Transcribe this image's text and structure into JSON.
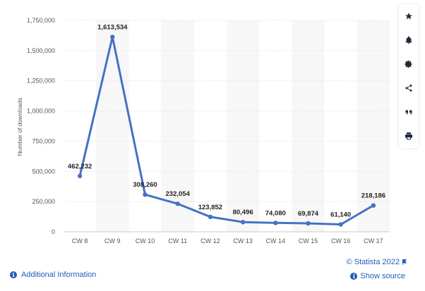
{
  "chart_data": {
    "type": "line",
    "categories": [
      "CW 8",
      "CW 9",
      "CW 10",
      "CW 11",
      "CW 12",
      "CW 13",
      "CW 14",
      "CW 15",
      "CW 16",
      "CW 17"
    ],
    "values": [
      462232,
      1613534,
      308260,
      232054,
      123852,
      80496,
      74080,
      69874,
      61140,
      218186
    ],
    "data_labels": [
      "462,232",
      "1,613,534",
      "308,260",
      "232,054",
      "123,852",
      "80,496",
      "74,080",
      "69,874",
      "61,140",
      "218,186"
    ],
    "yticks": [
      "0",
      "250,000",
      "500,000",
      "750,000",
      "1,000,000",
      "1,250,000",
      "1,500,000",
      "1,750,000"
    ],
    "ylim": [
      0,
      1750000
    ],
    "ylabel": "Number of downloads",
    "xlabel": "",
    "grid": true,
    "series_color": "#4472c4"
  },
  "footer": {
    "additional_info": "Additional Information",
    "copyright": "© Statista 2022",
    "show_source": "Show source"
  },
  "toolbar": {
    "icons": [
      "star-icon",
      "bell-icon",
      "gear-icon",
      "share-icon",
      "quote-icon",
      "print-icon"
    ]
  }
}
